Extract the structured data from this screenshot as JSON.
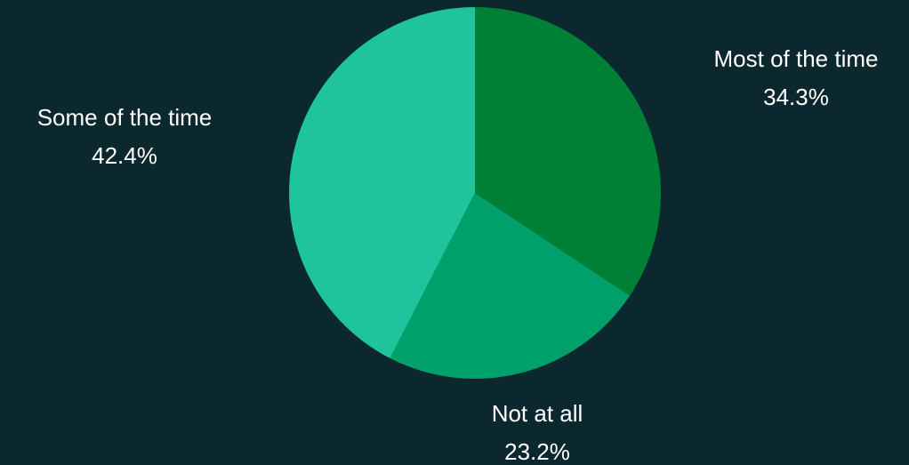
{
  "chart_data": {
    "type": "pie",
    "slices": [
      {
        "label": "Most of the time",
        "value": 34.3,
        "value_label": "34.3%",
        "color": "#007f37"
      },
      {
        "label": "Not at all",
        "value": 23.2,
        "value_label": "23.2%",
        "color": "#00a06a"
      },
      {
        "label": "Some of the time",
        "value": 42.4,
        "value_label": "42.4%",
        "color": "#1fc39c"
      }
    ],
    "start_angle": "12 o'clock",
    "direction": "clockwise",
    "legend": "none",
    "background": "#0b282e"
  }
}
